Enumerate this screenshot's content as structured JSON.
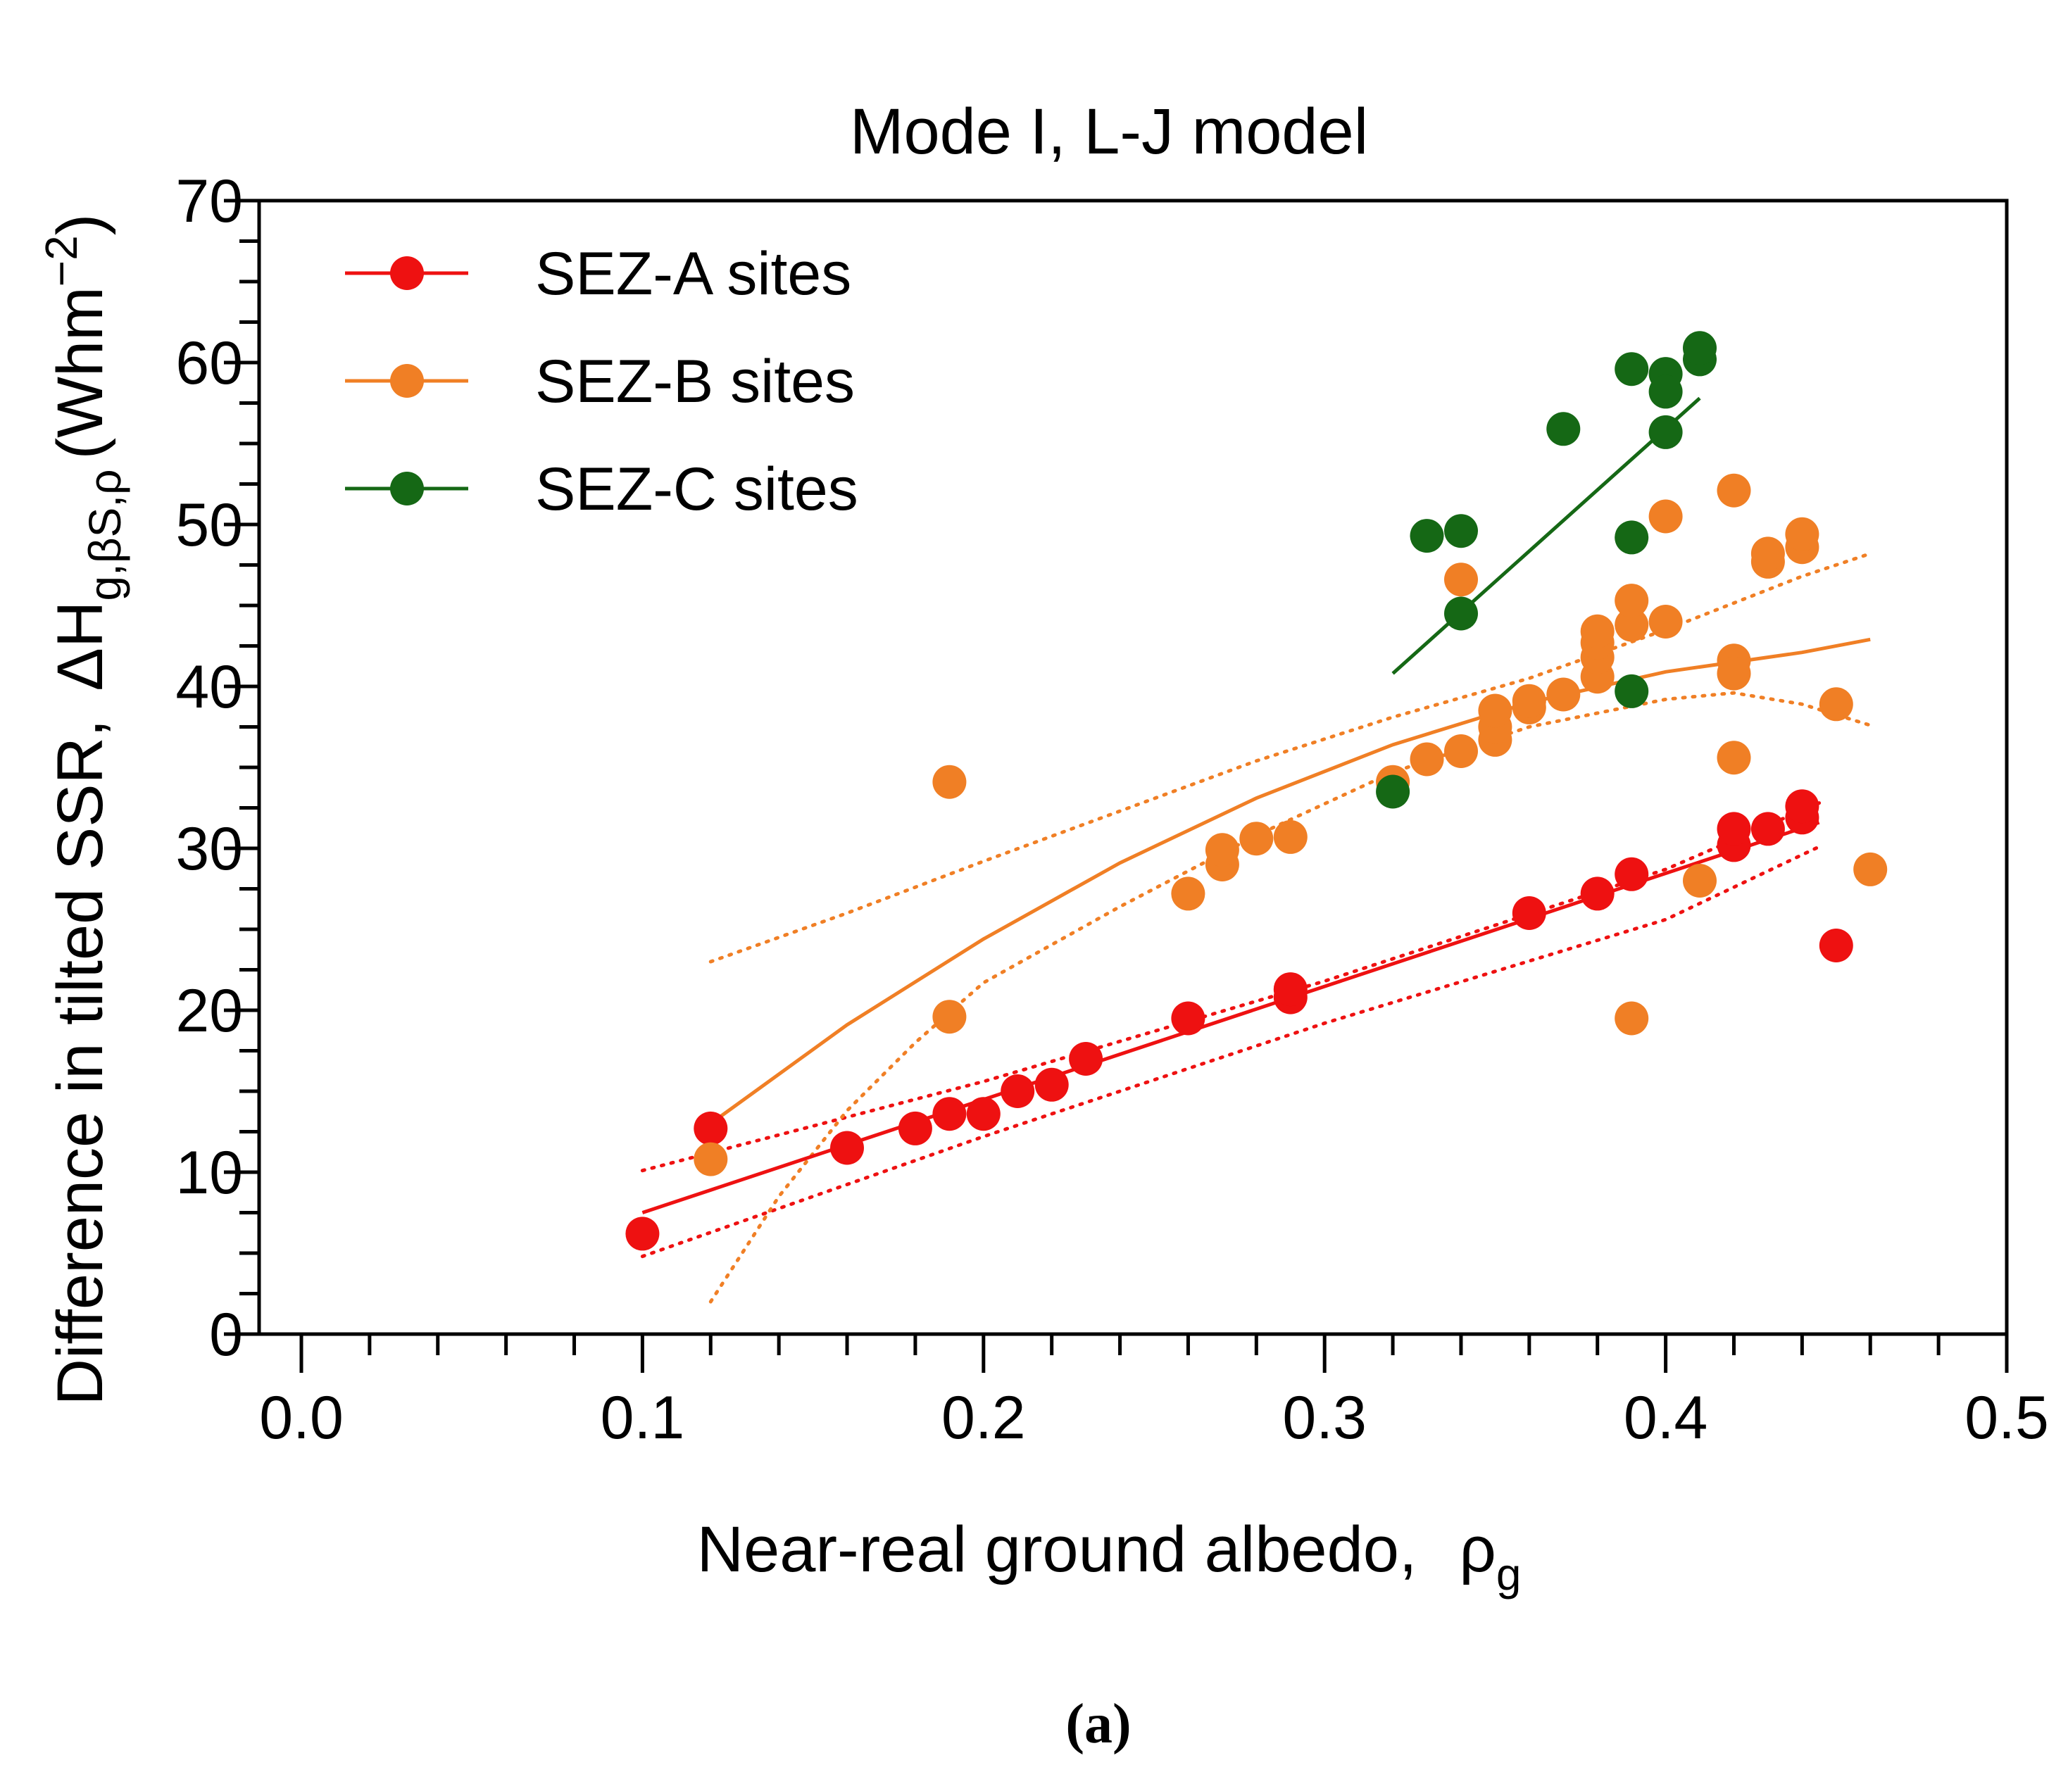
{
  "chart_data": {
    "type": "scatter",
    "title": "Mode I, L-J model",
    "xlabel": "Near-real ground albedo,",
    "xlabel_symbol": "ρ",
    "xlabel_sub": "g",
    "ylabel": "Difference in tilted SSR,",
    "ylabel_symbol": "ΔH",
    "ylabel_sub": "g,βS,ρ",
    "ylabel_units": "(Whm",
    "ylabel_units_sup": "−2",
    "ylabel_units_close": ")",
    "xlim": [
      0.0,
      0.5
    ],
    "ylim": [
      0,
      70
    ],
    "x_major_ticks": [
      0.0,
      0.1,
      0.2,
      0.3,
      0.4,
      0.5
    ],
    "x_tick_labels": [
      "0.0",
      "0.1",
      "0.2",
      "0.3",
      "0.4",
      "0.5"
    ],
    "y_major_ticks": [
      0,
      10,
      20,
      30,
      40,
      50,
      60,
      70
    ],
    "y_tick_labels": [
      "0",
      "10",
      "20",
      "30",
      "40",
      "50",
      "60",
      "70"
    ],
    "grid": false,
    "legend_position": "top-left",
    "caption": "(a)",
    "series": [
      {
        "name": "SEZ-A sites",
        "color": "#ee1111",
        "points": [
          [
            0.1,
            6.2
          ],
          [
            0.12,
            12.7
          ],
          [
            0.16,
            11.5
          ],
          [
            0.18,
            12.7
          ],
          [
            0.19,
            13.6
          ],
          [
            0.2,
            13.6
          ],
          [
            0.21,
            15.0
          ],
          [
            0.22,
            15.4
          ],
          [
            0.23,
            17.0
          ],
          [
            0.26,
            19.5
          ],
          [
            0.29,
            20.8
          ],
          [
            0.29,
            21.3
          ],
          [
            0.36,
            26.0
          ],
          [
            0.38,
            27.2
          ],
          [
            0.39,
            28.4
          ],
          [
            0.42,
            30.2
          ],
          [
            0.42,
            31.2
          ],
          [
            0.43,
            31.2
          ],
          [
            0.44,
            31.9
          ],
          [
            0.44,
            32.6
          ],
          [
            0.45,
            24.0
          ]
        ],
        "fit": {
          "kind": "linear",
          "x": [
            0.1,
            0.445
          ],
          "y": [
            7.5,
            31.6
          ]
        },
        "band_upper": {
          "x": [
            0.1,
            0.2,
            0.3,
            0.4,
            0.445
          ],
          "y": [
            10.1,
            15.6,
            21.8,
            28.7,
            32.8
          ]
        },
        "band_lower": {
          "x": [
            0.1,
            0.2,
            0.3,
            0.4,
            0.445
          ],
          "y": [
            4.8,
            12.2,
            19.2,
            25.6,
            30.1
          ]
        }
      },
      {
        "name": "SEZ-B sites",
        "color": "#f07f25",
        "points": [
          [
            0.12,
            10.8
          ],
          [
            0.19,
            34.1
          ],
          [
            0.19,
            19.6
          ],
          [
            0.26,
            27.2
          ],
          [
            0.27,
            29.0
          ],
          [
            0.27,
            29.9
          ],
          [
            0.28,
            30.6
          ],
          [
            0.29,
            30.7
          ],
          [
            0.32,
            34.1
          ],
          [
            0.33,
            35.5
          ],
          [
            0.34,
            46.6
          ],
          [
            0.34,
            36.0
          ],
          [
            0.35,
            36.7
          ],
          [
            0.35,
            37.5
          ],
          [
            0.35,
            38.5
          ],
          [
            0.36,
            38.7
          ],
          [
            0.36,
            39.1
          ],
          [
            0.37,
            39.5
          ],
          [
            0.38,
            40.6
          ],
          [
            0.38,
            41.8
          ],
          [
            0.38,
            42.7
          ],
          [
            0.38,
            43.4
          ],
          [
            0.39,
            43.8
          ],
          [
            0.39,
            45.3
          ],
          [
            0.39,
            19.5
          ],
          [
            0.4,
            50.5
          ],
          [
            0.4,
            44.0
          ],
          [
            0.41,
            28.0
          ],
          [
            0.42,
            52.1
          ],
          [
            0.42,
            41.6
          ],
          [
            0.42,
            40.8
          ],
          [
            0.42,
            35.6
          ],
          [
            0.43,
            47.7
          ],
          [
            0.43,
            48.2
          ],
          [
            0.44,
            48.6
          ],
          [
            0.44,
            49.4
          ],
          [
            0.45,
            38.9
          ],
          [
            0.46,
            28.7
          ]
        ],
        "fit": {
          "kind": "quadratic",
          "x": [
            0.12,
            0.16,
            0.2,
            0.24,
            0.28,
            0.32,
            0.36,
            0.4,
            0.44,
            0.46
          ],
          "y": [
            13.0,
            19.1,
            24.4,
            29.1,
            33.1,
            36.4,
            39.0,
            40.9,
            42.1,
            42.9
          ]
        },
        "band_upper": {
          "x": [
            0.12,
            0.16,
            0.2,
            0.24,
            0.28,
            0.32,
            0.36,
            0.4,
            0.44,
            0.46
          ],
          "y": [
            23.0,
            26.0,
            29.2,
            32.3,
            35.4,
            38.1,
            40.5,
            43.5,
            46.8,
            48.2
          ]
        },
        "band_lower": {
          "x": [
            0.12,
            0.14,
            0.16,
            0.18,
            0.2,
            0.24,
            0.28,
            0.32,
            0.36,
            0.4,
            0.42,
            0.44,
            0.46
          ],
          "y": [
            2.0,
            8.5,
            13.8,
            18.0,
            21.7,
            26.4,
            30.8,
            34.7,
            37.5,
            39.2,
            39.6,
            38.9,
            37.6
          ]
        }
      },
      {
        "name": "SEZ-C sites",
        "color": "#156815",
        "points": [
          [
            0.32,
            33.5
          ],
          [
            0.33,
            49.3
          ],
          [
            0.34,
            49.6
          ],
          [
            0.34,
            44.5
          ],
          [
            0.37,
            55.9
          ],
          [
            0.39,
            59.6
          ],
          [
            0.39,
            49.2
          ],
          [
            0.39,
            39.7
          ],
          [
            0.4,
            59.3
          ],
          [
            0.4,
            58.2
          ],
          [
            0.4,
            55.7
          ],
          [
            0.41,
            60.2
          ],
          [
            0.41,
            60.9
          ]
        ],
        "fit": {
          "kind": "linear",
          "x": [
            0.32,
            0.41
          ],
          "y": [
            40.8,
            57.8
          ]
        }
      }
    ]
  }
}
